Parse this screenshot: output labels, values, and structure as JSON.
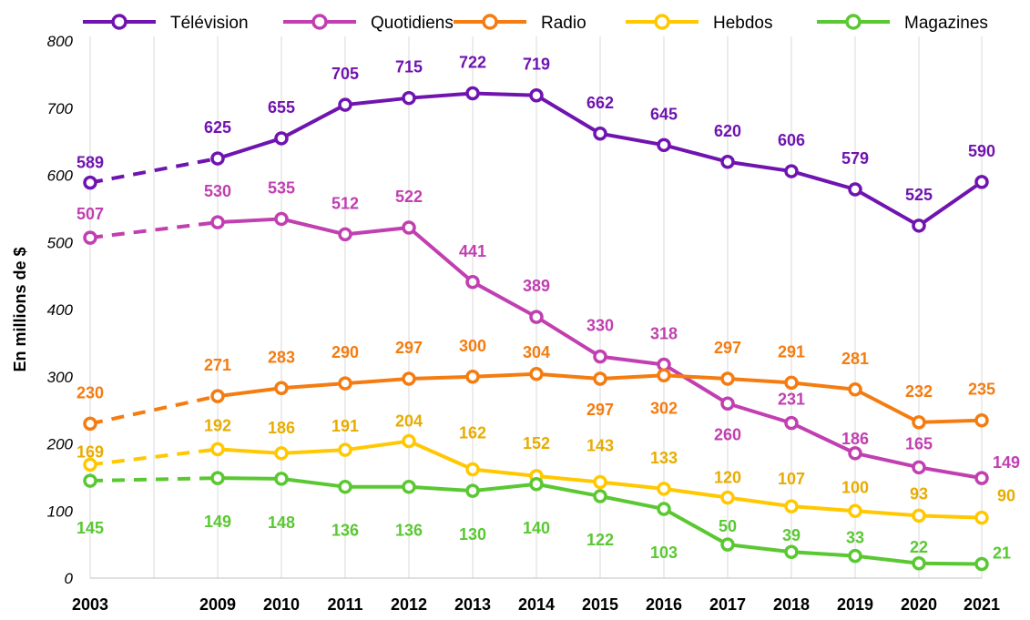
{
  "chart_data": {
    "type": "line",
    "title": "",
    "xlabel": "",
    "ylabel": "En millions de $",
    "ylim": [
      0,
      800
    ],
    "yticks": [
      "0",
      "100",
      "200",
      "300",
      "400",
      "500",
      "600",
      "700",
      "800"
    ],
    "x": [
      "2003",
      "2009",
      "2010",
      "2011",
      "2012",
      "2013",
      "2014",
      "2015",
      "2016",
      "2017",
      "2018",
      "2019",
      "2020",
      "2021"
    ],
    "gap_note": "dashed segment between 2003 and 2009",
    "legend_position": "top",
    "grid": "vertical",
    "series": [
      {
        "name": "Télévision",
        "color": "#7014b0",
        "values": [
          589,
          625,
          655,
          705,
          715,
          722,
          719,
          662,
          645,
          620,
          606,
          579,
          525,
          590
        ],
        "labels": [
          "589",
          "625",
          "655",
          "705",
          "715",
          "722",
          "719",
          "662",
          "645",
          "620",
          "606",
          "579",
          "525",
          "590"
        ]
      },
      {
        "name": "Quotidiens",
        "color": "#c13fb0",
        "values": [
          507,
          530,
          535,
          512,
          522,
          441,
          389,
          330,
          318,
          260,
          231,
          186,
          165,
          149
        ],
        "labels": [
          "507",
          "530",
          "535",
          "512",
          "522",
          "441",
          "389",
          "330",
          "318",
          "260",
          "231",
          "186",
          "165",
          "149"
        ]
      },
      {
        "name": "Radio",
        "color": "#f47c10",
        "values": [
          230,
          271,
          283,
          290,
          297,
          300,
          304,
          297,
          302,
          297,
          291,
          281,
          232,
          235
        ],
        "labels": [
          "230",
          "271",
          "283",
          "290",
          "297",
          "300",
          "304",
          "297",
          "302",
          "297",
          "291",
          "281",
          "232",
          "235"
        ]
      },
      {
        "name": "Hebdos",
        "color": "#ffc800",
        "values": [
          169,
          192,
          186,
          191,
          204,
          162,
          152,
          143,
          133,
          120,
          107,
          100,
          93,
          90
        ],
        "labels": [
          "169",
          "192",
          "186",
          "191",
          "204",
          "162",
          "152",
          "143",
          "133",
          "120",
          "107",
          "100",
          "93",
          "90"
        ]
      },
      {
        "name": "Magazines",
        "color": "#5ac832",
        "values": [
          145,
          149,
          148,
          136,
          136,
          130,
          140,
          122,
          103,
          50,
          39,
          33,
          22,
          21
        ],
        "labels": [
          "145",
          "149",
          "148",
          "136",
          "136",
          "130",
          "140",
          "122",
          "103",
          "50",
          "39",
          "33",
          "22",
          "21"
        ]
      }
    ]
  }
}
